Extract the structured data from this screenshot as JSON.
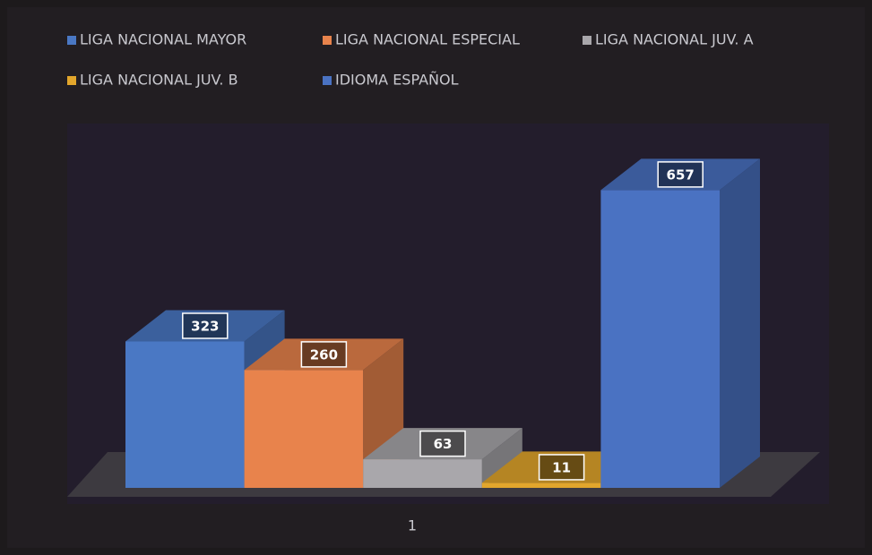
{
  "chart_data": {
    "type": "bar3d",
    "categories": [
      "1"
    ],
    "series": [
      {
        "name": "LIGA NACIONAL  MAYOR",
        "color": "#4a78c4",
        "values": [
          323
        ]
      },
      {
        "name": "LIGA NACIONAL  ESPECIAL",
        "color": "#e8834c",
        "values": [
          260
        ]
      },
      {
        "name": "LIGA NACIONAL  JUV. A",
        "color": "#a9a7ab",
        "values": [
          63
        ]
      },
      {
        "name": "LIGA NACIONAL  JUV. B",
        "color": "#e2a62c",
        "values": [
          11
        ]
      },
      {
        "name": "IDIOMA  ESPAÑOL",
        "color": "#4a72c2",
        "values": [
          657
        ]
      }
    ],
    "ylim": [
      0,
      800
    ],
    "legend": "top"
  }
}
